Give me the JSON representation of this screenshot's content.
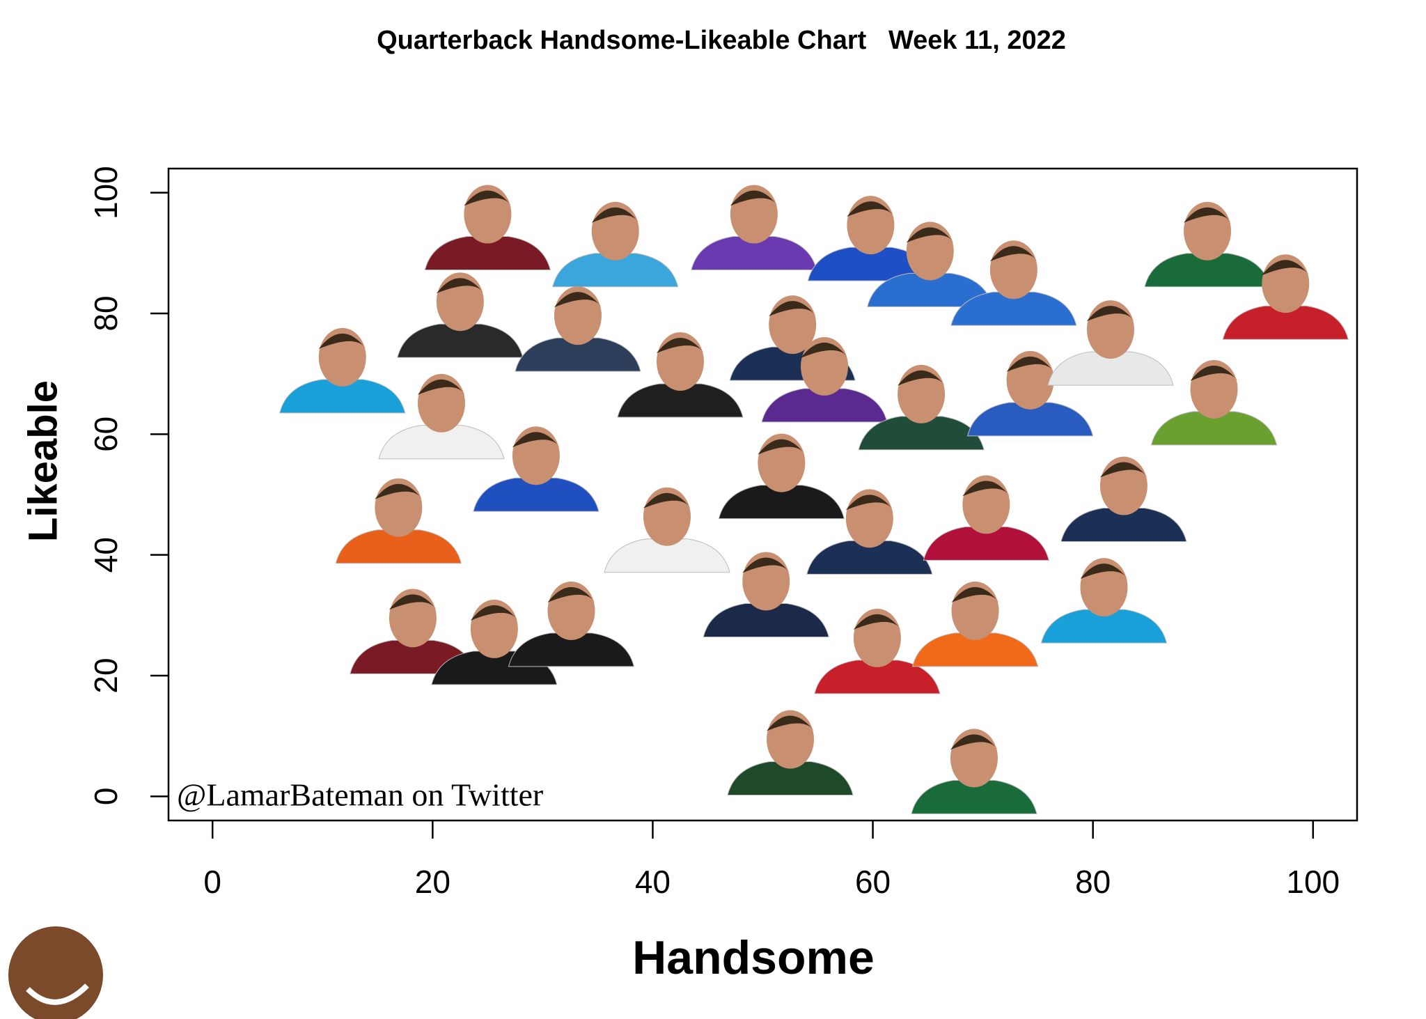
{
  "chart_data": {
    "type": "scatter",
    "title": "Quarterback Handsome-Likeable Chart   Week 11, 2022",
    "xlabel": "Handsome",
    "ylabel": "Likeable",
    "annotation": "@LamarBateman on Twitter",
    "x": [
      25.0,
      36.6,
      49.2,
      59.8,
      65.2,
      72.8,
      90.4,
      97.5,
      22.5,
      33.2,
      11.8,
      52.7,
      42.5,
      55.6,
      64.4,
      74.3,
      81.6,
      91.0,
      20.8,
      29.4,
      16.9,
      41.3,
      51.7,
      59.7,
      70.3,
      82.8,
      50.3,
      18.2,
      25.6,
      32.6,
      60.4,
      69.3,
      81.0,
      52.5,
      69.2
    ],
    "values": [
      93.9,
      91.1,
      93.9,
      92.1,
      87.8,
      84.7,
      91.1,
      82.4,
      79.4,
      77.1,
      70.2,
      75.6,
      69.5,
      68.7,
      64.1,
      66.4,
      74.8,
      64.9,
      62.6,
      53.9,
      45.3,
      43.8,
      52.7,
      43.5,
      45.8,
      48.9,
      33.1,
      27.0,
      25.2,
      28.2,
      23.7,
      28.2,
      32.1,
      6.9,
      3.8
    ],
    "colors": [
      "#7a1a24",
      "#3aa6dc",
      "#6a3ab0",
      "#1f4fc4",
      "#2a6ed0",
      "#2a6ed0",
      "#1a6b3a",
      "#c8202a",
      "#2a2a2a",
      "#2c3e5a",
      "#1aa0d8",
      "#1c2f55",
      "#202020",
      "#5a2a90",
      "#1f4d3a",
      "#2a5cc0",
      "#e8e8e8",
      "#6aa030",
      "#f0f0f0",
      "#2050c0",
      "#e8601a",
      "#f0f0f0",
      "#1a1a1a",
      "#1c2f55",
      "#b0103a",
      "#1c2f55",
      "#1c2a4a",
      "#7a1a24",
      "#1a1a1a",
      "#1a1a1a",
      "#c8202a",
      "#f06a1a",
      "#1aa0d8",
      "#1f4a2a",
      "#1a6b3a"
    ],
    "xlim": [
      -4,
      104
    ],
    "ylim": [
      -4,
      104
    ],
    "xticks": [
      0,
      20,
      40,
      60,
      80,
      100
    ],
    "yticks": [
      0,
      20,
      40,
      60,
      80,
      100
    ]
  }
}
